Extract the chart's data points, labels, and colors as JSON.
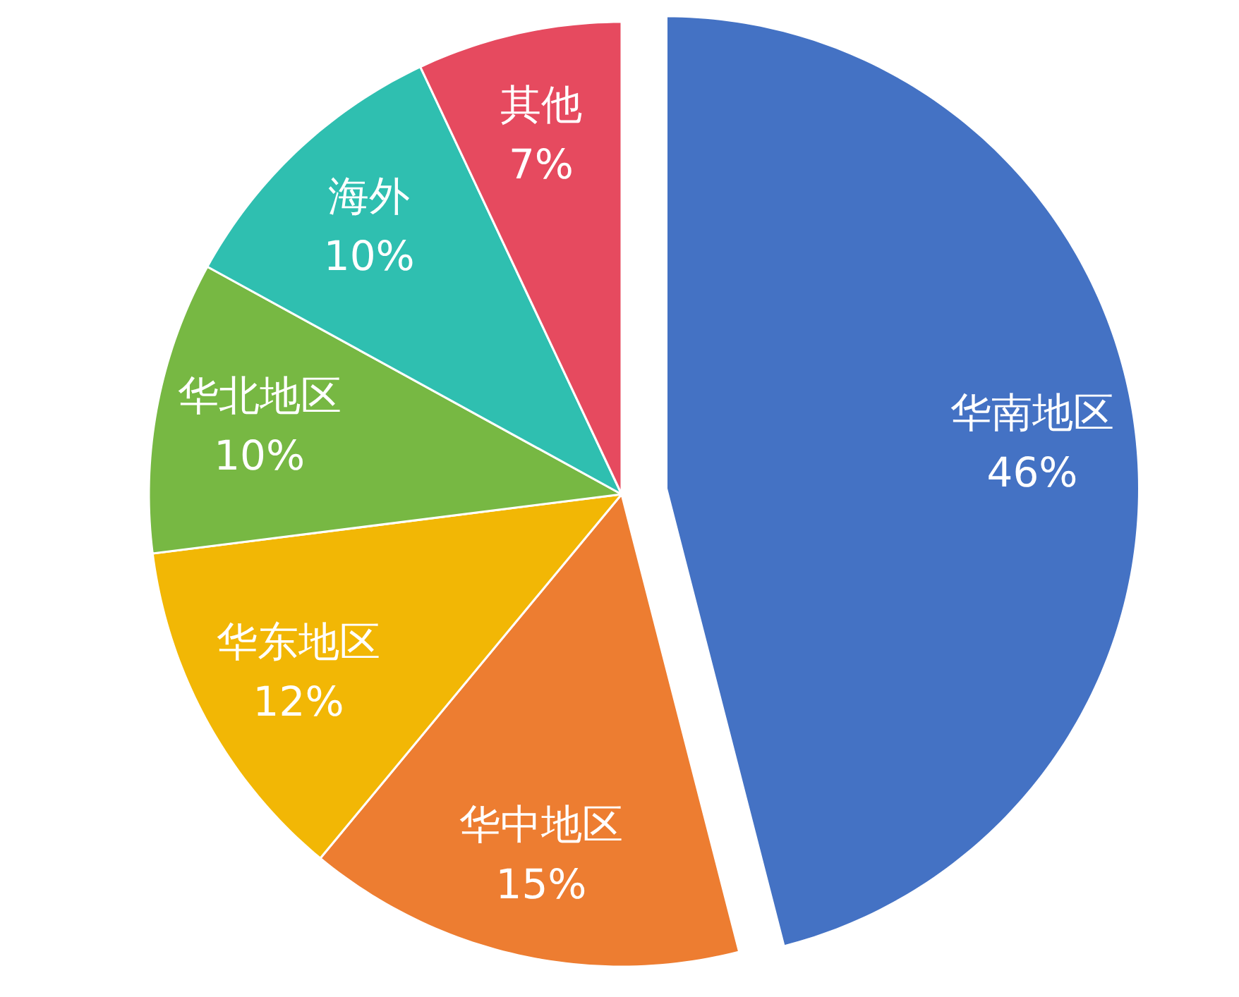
{
  "chart_data": {
    "type": "pie",
    "categories": [
      "华南地区",
      "华中地区",
      "华东地区",
      "华北地区",
      "海外",
      "其他"
    ],
    "values": [
      46,
      15,
      12,
      10,
      10,
      7
    ],
    "value_labels": [
      "46%",
      "15%",
      "12%",
      "10%",
      "10%",
      "7%"
    ],
    "colors": [
      "#4472c4",
      "#ed7d31",
      "#f2b705",
      "#77b843",
      "#2fbfb0",
      "#e64a5f"
    ]
  }
}
